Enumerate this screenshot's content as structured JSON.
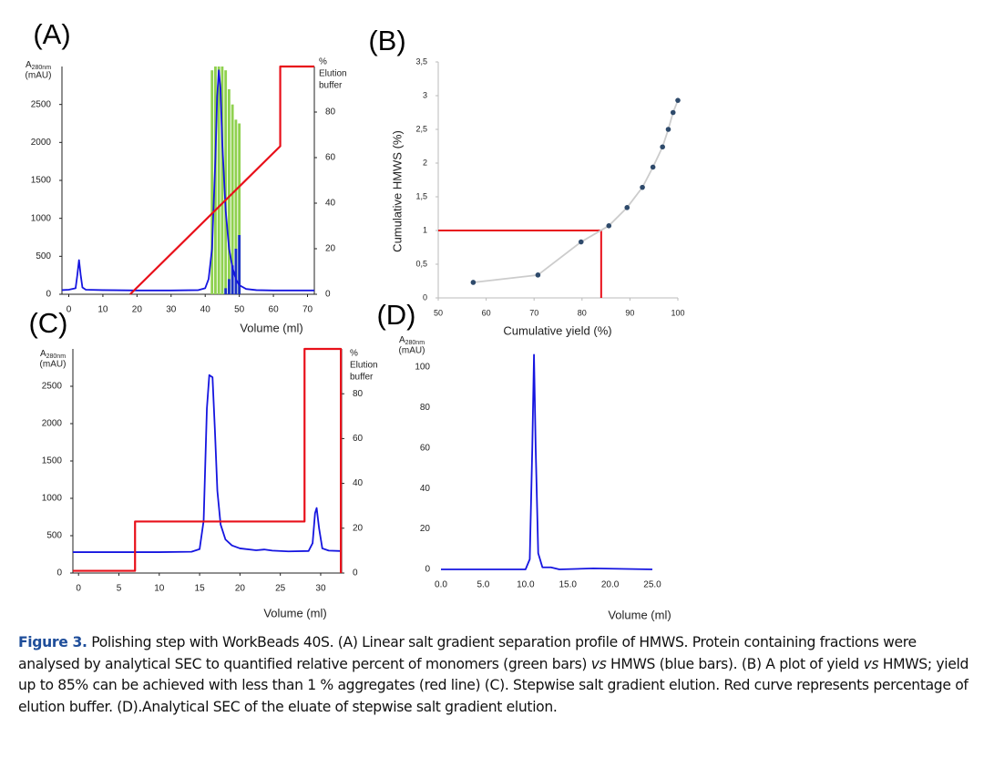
{
  "chart_data": [
    {
      "type": "line",
      "label": "(A)",
      "xlabel": "Volume (ml)",
      "ylabel_base": "A",
      "ylabel_sub": "280nm",
      "ylabel_unit": "(mAU)",
      "y2label": [
        "%",
        "Elution",
        "buffer"
      ],
      "xlim": [
        -2,
        72
      ],
      "ylim": [
        0,
        3000
      ],
      "y2lim": [
        0,
        100
      ],
      "xticks": [
        0,
        10,
        20,
        30,
        40,
        50,
        60,
        70
      ],
      "yticks": [
        0,
        500,
        1000,
        1500,
        2000,
        2500
      ],
      "y2ticks": [
        0,
        20,
        40,
        60,
        80
      ],
      "axis_lines": true,
      "axis_color": "#222",
      "series": [
        {
          "kind": "bar",
          "color": "#8fd14f",
          "x": [
            42,
            43,
            44,
            45,
            46,
            47,
            48,
            49,
            50
          ],
          "values": [
            2950,
            3000,
            3000,
            3000,
            2950,
            2700,
            2500,
            2300,
            2250
          ]
        },
        {
          "kind": "bar",
          "color": "#1a2fc8",
          "x": [
            42,
            43,
            44,
            45,
            46,
            47,
            48,
            49,
            50
          ],
          "values": [
            0,
            0,
            0,
            0,
            80,
            200,
            380,
            600,
            780
          ]
        },
        {
          "kind": "line",
          "color": "#1515e0",
          "x": [
            -2,
            0,
            2,
            2.5,
            3,
            3.5,
            4,
            5,
            10,
            20,
            30,
            38,
            40,
            41,
            42,
            43,
            43.5,
            44,
            44.5,
            45,
            46,
            47,
            48,
            49,
            50,
            52,
            55,
            60,
            72
          ],
          "values": [
            55,
            60,
            80,
            250,
            450,
            250,
            90,
            60,
            55,
            50,
            50,
            55,
            80,
            200,
            600,
            1800,
            2600,
            2950,
            2700,
            2000,
            1100,
            600,
            350,
            200,
            120,
            70,
            55,
            50,
            50
          ]
        },
        {
          "kind": "line",
          "axis": "y2",
          "color": "#e8101a",
          "x": [
            18,
            62,
            62,
            72
          ],
          "values": [
            0,
            65,
            100,
            100
          ]
        }
      ]
    },
    {
      "type": "scatter",
      "label": "(B)",
      "xlabel": "Cumulative yield (%)",
      "ylabel": "Cumulative HMWS (%)",
      "xlim": [
        50,
        100
      ],
      "ylim": [
        0,
        3.5
      ],
      "xticks": [
        50,
        60,
        70,
        80,
        90,
        100
      ],
      "yticks": [
        0,
        {
          "value": 0.5,
          "label": "0,5"
        },
        1,
        {
          "value": 1.5,
          "label": "1,5"
        },
        2,
        {
          "value": 2.5,
          "label": "2,5"
        },
        3,
        {
          "value": 3.5,
          "label": "3,5"
        }
      ],
      "axis_lines": true,
      "axis_color": "#bbb",
      "series": [
        {
          "kind": "line",
          "markers": true,
          "color": "#cccccc",
          "marker_color": "#2e4a6b",
          "x": [
            57.3,
            70.8,
            79.8,
            85.6,
            89.4,
            92.6,
            94.8,
            96.8,
            98,
            99,
            100
          ],
          "values": [
            0.23,
            0.34,
            0.83,
            1.07,
            1.34,
            1.64,
            1.94,
            2.24,
            2.5,
            2.75,
            2.93
          ]
        }
      ],
      "reference": {
        "x": 84,
        "y": 1,
        "color": "#e8101a"
      }
    },
    {
      "type": "line",
      "label": "(C)",
      "xlabel": "Volume (ml)",
      "ylabel_base": "A",
      "ylabel_sub": "280nm",
      "ylabel_unit": "(mAU)",
      "y2label": [
        "%",
        "Elution",
        "buffer"
      ],
      "xlim": [
        -0.7,
        32.6
      ],
      "ylim": [
        0,
        3000
      ],
      "y2lim": [
        0,
        100
      ],
      "xticks": [
        0,
        5,
        10,
        15,
        20,
        25,
        30
      ],
      "yticks": [
        0,
        500,
        1000,
        1500,
        2000,
        2500
      ],
      "y2ticks": [
        0,
        20,
        40,
        60,
        80
      ],
      "axis_lines": true,
      "axis_color": "#222",
      "series": [
        {
          "kind": "line",
          "color": "#1515e0",
          "x": [
            -0.7,
            5,
            10,
            14,
            15,
            15.5,
            15.9,
            16.2,
            16.6,
            16.9,
            17.2,
            17.6,
            18.2,
            19,
            20,
            22,
            23,
            24,
            26,
            28.5,
            29,
            29.3,
            29.5,
            29.8,
            30.2,
            31,
            32.4
          ],
          "values": [
            280,
            280,
            280,
            285,
            320,
            700,
            2200,
            2650,
            2620,
            1900,
            1100,
            650,
            450,
            370,
            330,
            305,
            315,
            300,
            290,
            295,
            400,
            800,
            870,
            600,
            330,
            300,
            295
          ]
        },
        {
          "kind": "line",
          "axis": "y2",
          "color": "#e8101a",
          "x": [
            -0.7,
            7,
            7,
            28,
            28,
            32.5,
            32.5
          ],
          "values": [
            1,
            1,
            23,
            23,
            100,
            100,
            0
          ]
        }
      ]
    },
    {
      "type": "line",
      "label": "(D)",
      "xlabel": "Volume (ml)",
      "ylabel_base": "A",
      "ylabel_sub": "280nm",
      "ylabel_unit": "(mAU)",
      "xlim": [
        0,
        25
      ],
      "ylim": [
        0,
        108
      ],
      "xticks": [
        {
          "value": 0,
          "label": "0.0"
        },
        {
          "value": 5,
          "label": "5.0"
        },
        {
          "value": 10,
          "label": "10.0"
        },
        {
          "value": 15,
          "label": "15.0"
        },
        {
          "value": 20,
          "label": "20.0"
        },
        {
          "value": 25,
          "label": "25.0"
        }
      ],
      "yticks": [
        0,
        20,
        40,
        60,
        80,
        100
      ],
      "axis_lines": false,
      "series": [
        {
          "kind": "line",
          "color": "#1515e0",
          "x": [
            0,
            10,
            10.5,
            10.8,
            11,
            11.2,
            11.5,
            12,
            13,
            14,
            18,
            25
          ],
          "values": [
            0,
            0,
            5,
            60,
            106,
            60,
            8,
            1,
            1,
            0,
            0.5,
            0
          ]
        }
      ]
    }
  ],
  "caption": {
    "label": "Figure 3.",
    "parts": [
      {
        "text": " Polishing step with WorkBeads 40S. (A) Linear salt gradient separation profile of HMWS. Protein containing fractions were analysed by analytical SEC to quantified relative percent of monomers (green bars) "
      },
      {
        "text": "vs",
        "italic": true
      },
      {
        "text": " HMWS (blue bars). (B) A plot of yield "
      },
      {
        "text": "vs",
        "italic": true
      },
      {
        "text": " HMWS; yield up to 85% can be achieved with less than 1 % aggregates (red line) (C). Stepwise salt gradient elution. Red curve represents percentage of elution buffer. (D).Analytical SEC of the eluate of stepwise salt gradient elution."
      }
    ]
  }
}
